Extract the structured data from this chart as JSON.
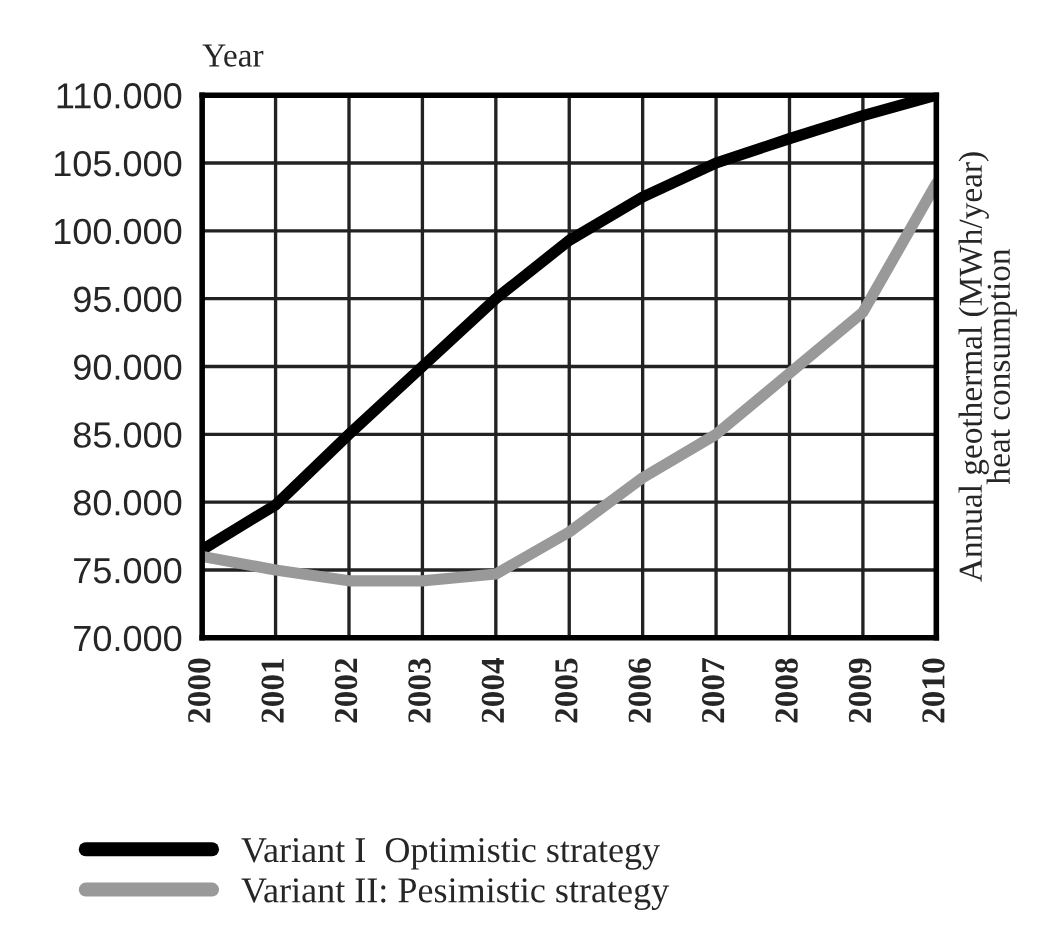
{
  "chart_data": {
    "type": "line",
    "xlabel": "Year",
    "ylabel": "Annual geothermal (MWh/year)\nheat consumption",
    "x": [
      2000,
      2001,
      2002,
      2003,
      2004,
      2005,
      2006,
      2007,
      2008,
      2009,
      2010
    ],
    "series": [
      {
        "name": "Variant I  Optimistic strategy",
        "color": "#000000",
        "values": [
          76500,
          79800,
          85000,
          90000,
          95000,
          99300,
          102500,
          105000,
          106800,
          108500,
          110000
        ]
      },
      {
        "name": "Variant II: Pesimistic strategy",
        "color": "#999999",
        "values": [
          76000,
          75000,
          74200,
          74200,
          74700,
          77800,
          81800,
          85000,
          89500,
          94000,
          103500
        ]
      }
    ],
    "xlim": [
      2000,
      2010
    ],
    "xticks": [
      2000,
      2001,
      2002,
      2003,
      2004,
      2005,
      2006,
      2007,
      2008,
      2009,
      2010
    ],
    "ylim": [
      70000,
      110000
    ],
    "yticks": [
      {
        "value": 70000,
        "label": "70.000"
      },
      {
        "value": 75000,
        "label": "75.000"
      },
      {
        "value": 80000,
        "label": "80.000"
      },
      {
        "value": 85000,
        "label": "85.000"
      },
      {
        "value": 90000,
        "label": "90.000"
      },
      {
        "value": 95000,
        "label": "95.000"
      },
      {
        "value": 100000,
        "label": "100.000"
      },
      {
        "value": 105000,
        "label": "105.000"
      },
      {
        "value": 110000,
        "label": "110.000"
      }
    ],
    "grid": true,
    "legend": "bottom",
    "marker": "none",
    "line_style": "solid"
  }
}
